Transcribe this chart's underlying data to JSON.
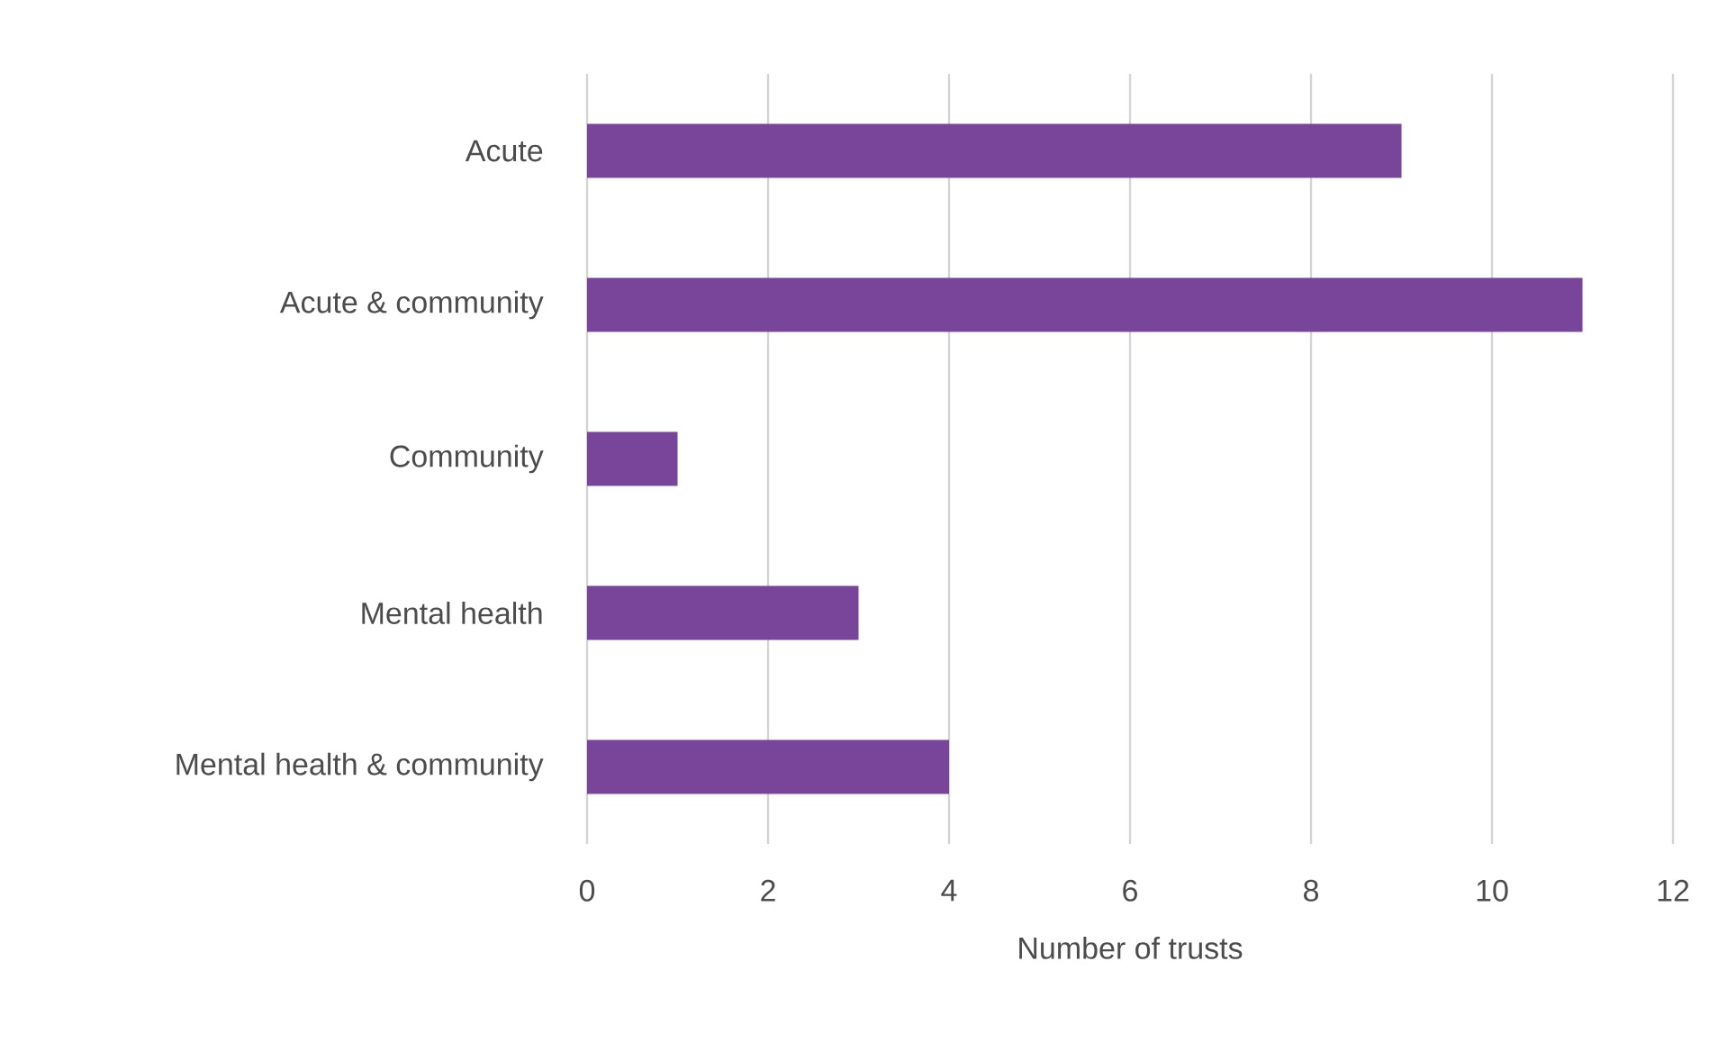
{
  "chart_data": {
    "type": "bar",
    "orientation": "horizontal",
    "xlabel": "Number of trusts",
    "categories": [
      "Acute",
      "Acute & community",
      "Community",
      "Mental health",
      "Mental health & community"
    ],
    "values": [
      9,
      11,
      1,
      3,
      4
    ],
    "color": "#78459b",
    "xlim": [
      0,
      12
    ],
    "xticks": [
      0,
      2,
      4,
      6,
      8,
      10,
      12
    ],
    "grid": "x"
  }
}
